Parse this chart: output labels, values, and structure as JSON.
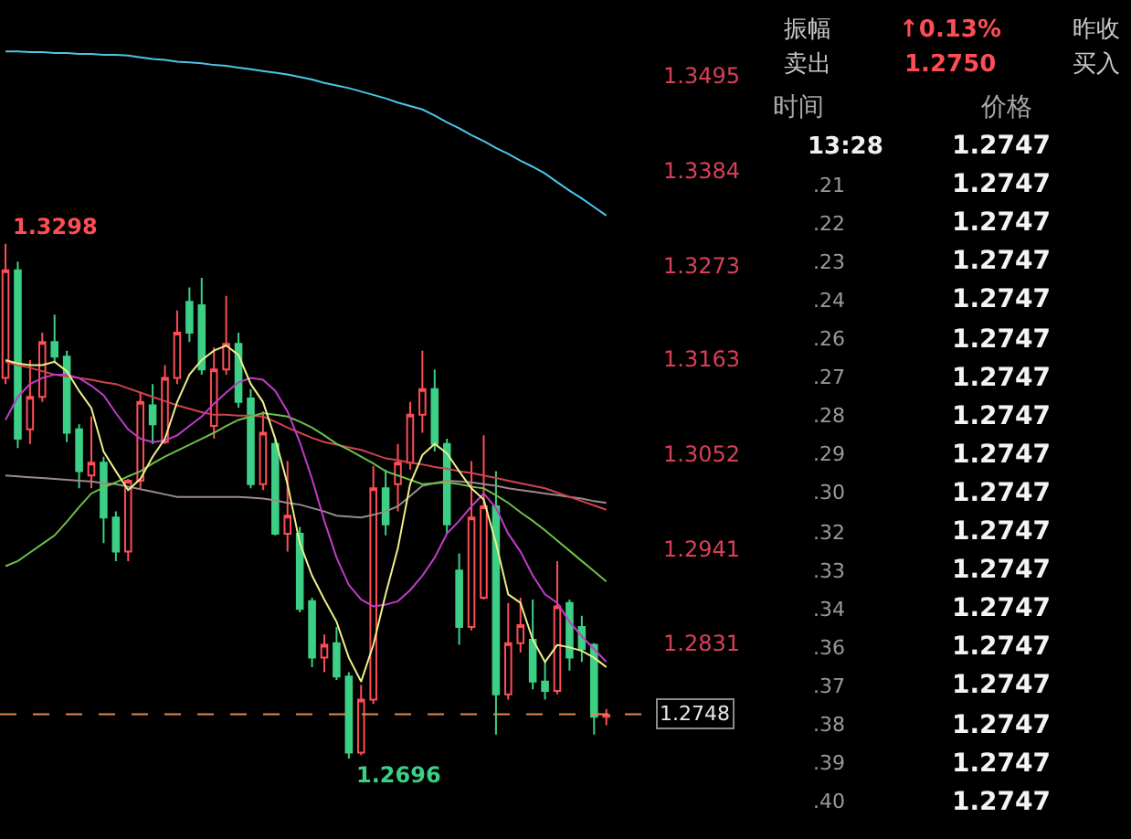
{
  "chart_data": [
    {
      "type": "candlestick",
      "categories": [
        null,
        null,
        null,
        null,
        null,
        null,
        null,
        null,
        null,
        null,
        null,
        null,
        null,
        null,
        null,
        null,
        null,
        null,
        null,
        null,
        null,
        null,
        null,
        null,
        null,
        null,
        null,
        null,
        null,
        null,
        null,
        null,
        null,
        null,
        null,
        null,
        null,
        null,
        null,
        null,
        null,
        null,
        null,
        null,
        null,
        null,
        null,
        null,
        null,
        null
      ],
      "ohlc": [
        [
          1.3141,
          1.3298,
          1.3134,
          1.3267
        ],
        [
          1.3267,
          1.3277,
          1.3059,
          1.307
        ],
        [
          1.3081,
          1.3162,
          1.3064,
          1.3119
        ],
        [
          1.3119,
          1.3194,
          1.3113,
          1.3183
        ],
        [
          1.3183,
          1.3215,
          1.316,
          1.3166
        ],
        [
          1.3166,
          1.3173,
          1.3066,
          1.3077
        ],
        [
          1.3081,
          1.3087,
          1.3012,
          1.3032
        ],
        [
          1.3027,
          1.3096,
          1.3012,
          1.3042
        ],
        [
          1.3042,
          1.3049,
          1.2948,
          1.2978
        ],
        [
          1.2978,
          1.2985,
          1.2927,
          1.2938
        ],
        [
          1.2938,
          1.3023,
          1.2927,
          1.3021
        ],
        [
          1.3021,
          1.3124,
          1.3012,
          1.3113
        ],
        [
          1.3109,
          1.3134,
          1.3064,
          1.3087
        ],
        [
          1.3066,
          1.3156,
          1.3064,
          1.3141
        ],
        [
          1.3141,
          1.322,
          1.3134,
          1.3194
        ],
        [
          1.323,
          1.3247,
          1.3183,
          1.3194
        ],
        [
          1.3226,
          1.3258,
          1.3145,
          1.3151
        ],
        [
          1.3085,
          1.3177,
          1.307,
          1.3151
        ],
        [
          1.3151,
          1.3237,
          1.3145,
          1.3181
        ],
        [
          1.3181,
          1.3194,
          1.3106,
          1.3113
        ],
        [
          1.3117,
          1.3128,
          1.3012,
          1.3017
        ],
        [
          1.3017,
          1.3102,
          1.301,
          1.3077
        ],
        [
          1.3064,
          1.307,
          1.2957,
          1.2959
        ],
        [
          1.2959,
          1.3044,
          1.2938,
          1.298
        ],
        [
          1.2959,
          1.2967,
          1.2867,
          1.2871
        ],
        [
          1.288,
          1.2884,
          1.2803,
          1.2814
        ],
        [
          1.2814,
          1.2841,
          1.2797,
          1.2829
        ],
        [
          1.2831,
          1.285,
          1.2788,
          1.2792
        ],
        [
          1.2792,
          1.2797,
          1.2696,
          1.2703
        ],
        [
          1.2703,
          1.2782,
          1.27,
          1.2765
        ],
        [
          1.2765,
          1.3038,
          1.276,
          1.3012
        ],
        [
          1.3012,
          1.3034,
          1.2957,
          1.297
        ],
        [
          1.3017,
          1.3064,
          1.2985,
          1.3042
        ],
        [
          1.3042,
          1.3113,
          1.3034,
          1.3098
        ],
        [
          1.3098,
          1.3173,
          1.3077,
          1.3128
        ],
        [
          1.3128,
          1.3151,
          1.3055,
          1.3064
        ],
        [
          1.3064,
          1.307,
          1.2959,
          1.297
        ],
        [
          1.2916,
          1.2936,
          1.2829,
          1.285
        ],
        [
          1.285,
          1.3044,
          1.2846,
          1.2978
        ],
        [
          1.2884,
          1.3074,
          1.2882,
          1.2991
        ],
        [
          1.2991,
          1.3032,
          1.2724,
          1.2771
        ],
        [
          1.2771,
          1.2878,
          1.2765,
          1.2831
        ],
        [
          1.2831,
          1.2884,
          1.282,
          1.2852
        ],
        [
          1.2835,
          1.2882,
          1.2777,
          1.2786
        ],
        [
          1.2786,
          1.2809,
          1.2765,
          1.2775
        ],
        [
          1.2775,
          1.2927,
          1.2771,
          1.2874
        ],
        [
          1.2878,
          1.2882,
          1.2799,
          1.2814
        ],
        [
          1.285,
          1.2863,
          1.2809,
          1.2824
        ],
        [
          1.2829,
          1.2831,
          1.2724,
          1.2745
        ],
        [
          1.2745,
          1.2754,
          1.2735,
          1.2747
        ]
      ],
      "series": [
        {
          "type": "line",
          "color": "#4cc6e6",
          "values": [
            1.3523,
            1.3523,
            1.3522,
            1.3522,
            1.3521,
            1.3521,
            1.352,
            1.352,
            1.3519,
            1.3519,
            1.3518,
            1.3516,
            1.3514,
            1.3513,
            1.3511,
            1.351,
            1.3509,
            1.3507,
            1.3506,
            1.3504,
            1.3502,
            1.35,
            1.3498,
            1.3496,
            1.3493,
            1.349,
            1.3486,
            1.3483,
            1.348,
            1.3476,
            1.3472,
            1.3468,
            1.3463,
            1.3459,
            1.3455,
            1.3448,
            1.344,
            1.3433,
            1.3425,
            1.3418,
            1.341,
            1.3403,
            1.3395,
            1.3388,
            1.338,
            1.337,
            1.336,
            1.3351,
            1.3341,
            1.3331
          ]
        },
        {
          "type": "line",
          "color": "#9a8a8e",
          "values": [
            1.3027,
            1.3026,
            1.3025,
            1.3024,
            1.3023,
            1.3022,
            1.3021,
            1.302,
            1.3018,
            1.3017,
            1.3014,
            1.3011,
            1.3008,
            1.3005,
            1.3002,
            1.3002,
            1.3002,
            1.3002,
            1.3002,
            1.3002,
            1.3001,
            1.3,
            1.2998,
            1.2995,
            1.2993,
            1.2989,
            1.2985,
            1.298,
            1.2979,
            1.2978,
            1.2981,
            1.2985,
            1.2991,
            1.3003,
            1.3015,
            1.3018,
            1.3021,
            1.302,
            1.3019,
            1.3017,
            1.3015,
            1.3012,
            1.301,
            1.3008,
            1.3006,
            1.3004,
            1.3002,
            1.3,
            1.2997,
            1.2995
          ]
        },
        {
          "type": "line",
          "color": "#d0444c",
          "values": [
            1.316,
            1.3156,
            1.3153,
            1.3149,
            1.3145,
            1.3143,
            1.3141,
            1.3139,
            1.3136,
            1.3134,
            1.3129,
            1.3124,
            1.3119,
            1.3114,
            1.3109,
            1.3105,
            1.3101,
            1.3098,
            1.3098,
            1.3097,
            1.3097,
            1.3096,
            1.309,
            1.3083,
            1.3077,
            1.3071,
            1.3066,
            1.3063,
            1.306,
            1.3057,
            1.3052,
            1.3047,
            1.3045,
            1.3042,
            1.304,
            1.3037,
            1.3035,
            1.3032,
            1.303,
            1.3027,
            1.3024,
            1.3021,
            1.3018,
            1.3015,
            1.3012,
            1.3007,
            1.3002,
            1.2997,
            1.2992,
            1.2987
          ]
        },
        {
          "type": "line",
          "color": "#6cc04a",
          "values": [
            1.2921,
            1.2927,
            1.2937,
            1.2947,
            1.2957,
            1.2973,
            1.299,
            1.3006,
            1.3013,
            1.3019,
            1.3026,
            1.3032,
            1.3041,
            1.3049,
            1.3056,
            1.3063,
            1.307,
            1.3077,
            1.3085,
            1.3092,
            1.3096,
            1.31,
            1.3098,
            1.3096,
            1.309,
            1.3083,
            1.3074,
            1.3064,
            1.3057,
            1.3049,
            1.3041,
            1.3032,
            1.3027,
            1.3022,
            1.3017,
            1.3018,
            1.3019,
            1.3017,
            1.3014,
            1.3012,
            1.3004,
            1.2995,
            1.2984,
            1.2974,
            1.2963,
            1.2951,
            1.2939,
            1.2927,
            1.2915,
            1.2903
          ]
        },
        {
          "type": "line",
          "color": "#c03cc8",
          "values": [
            1.3092,
            1.3119,
            1.3134,
            1.3141,
            1.3145,
            1.3145,
            1.3141,
            1.3132,
            1.3121,
            1.31,
            1.3081,
            1.307,
            1.3066,
            1.3068,
            1.3074,
            1.3085,
            1.3096,
            1.3111,
            1.3124,
            1.3136,
            1.3141,
            1.3139,
            1.3126,
            1.3102,
            1.3066,
            1.3023,
            1.2974,
            1.2931,
            1.2899,
            1.2882,
            1.2874,
            1.2876,
            1.288,
            1.2893,
            1.291,
            1.2931,
            1.2959,
            1.2974,
            1.2991,
            1.3006,
            1.2989,
            1.2959,
            1.2938,
            1.291,
            1.2888,
            1.2878,
            1.2856,
            1.2839,
            1.2824,
            1.2809
          ]
        },
        {
          "type": "line",
          "color": "#eeee88",
          "values": [
            1.3162,
            1.3158,
            1.3156,
            1.3156,
            1.316,
            1.3149,
            1.3126,
            1.3106,
            1.3055,
            1.3032,
            1.301,
            1.3023,
            1.3049,
            1.307,
            1.3113,
            1.3145,
            1.3162,
            1.3173,
            1.3179,
            1.3168,
            1.3134,
            1.3113,
            1.307,
            1.3017,
            1.2948,
            1.291,
            1.2882,
            1.2856,
            1.2814,
            1.2786,
            1.2829,
            1.2888,
            1.2942,
            1.3017,
            1.3051,
            1.3064,
            1.3053,
            1.3032,
            1.3012,
            1.2999,
            1.2948,
            1.2888,
            1.2878,
            1.2835,
            1.2809,
            1.2829,
            1.2826,
            1.2822,
            1.2814,
            1.2803
          ]
        }
      ],
      "ylim": [
        1.2602,
        1.3583
      ],
      "yticks": [
        1.3495,
        1.3384,
        1.3273,
        1.3163,
        1.3052,
        1.2941,
        1.2831
      ],
      "tick_labels": "y",
      "grid": false,
      "marker": "none",
      "ref_lines": [
        {
          "axis": "y",
          "value": 1.2748,
          "label": "1.2748",
          "color": "#e08a50",
          "line_style": "dashed"
        }
      ],
      "annotations": [
        "1.3298",
        "1.2696"
      ]
    },
    {
      "type": "other",
      "annotations": [
        "振幅",
        "↑0.13%",
        "昨收",
        "卖出",
        "1.2750",
        "买入",
        "时间",
        "价格",
        "13:28",
        "1.2747",
        ".21",
        "1.2747",
        ".22",
        "1.2747",
        ".23",
        "1.2747",
        ".24",
        "1.2747",
        ".26",
        "1.2747",
        ".27",
        "1.2747",
        ".28",
        "1.2747",
        ".29",
        "1.2747",
        ".30",
        "1.2747",
        ".32",
        "1.2747",
        ".33",
        "1.2747",
        ".34",
        "1.2747",
        ".36",
        "1.2747",
        ".37",
        "1.2747",
        ".38",
        "1.2747",
        ".39",
        "1.2747",
        ".40",
        "1.2747"
      ]
    }
  ]
}
